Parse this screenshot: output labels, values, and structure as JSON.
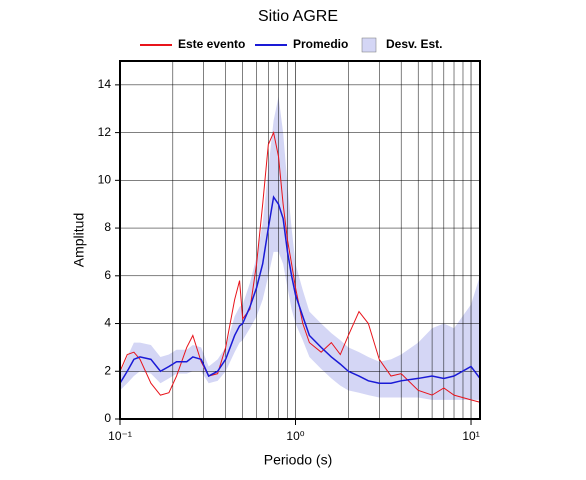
{
  "chart_data": {
    "type": "line",
    "title": "Sitio AGRE",
    "xlabel": "Periodo (s)",
    "ylabel": "Amplitud",
    "xscale": "log",
    "xlim": [
      0.1,
      11.25
    ],
    "ylim": [
      0,
      15
    ],
    "xticks": [
      {
        "value": 0.1,
        "label": "10⁻¹"
      },
      {
        "value": 1,
        "label": "10⁰"
      },
      {
        "value": 10,
        "label": "10¹"
      }
    ],
    "xminor": [
      0.2,
      0.3,
      0.4,
      0.5,
      0.6,
      0.7,
      0.8,
      0.9,
      2,
      3,
      4,
      5,
      6,
      7,
      8,
      9
    ],
    "yticks": [
      0,
      2,
      4,
      6,
      8,
      10,
      12,
      14
    ],
    "grid": true,
    "x": [
      0.1,
      0.11,
      0.12,
      0.13,
      0.15,
      0.17,
      0.19,
      0.21,
      0.24,
      0.26,
      0.29,
      0.32,
      0.36,
      0.4,
      0.45,
      0.48,
      0.5,
      0.55,
      0.6,
      0.65,
      0.7,
      0.75,
      0.8,
      0.85,
      0.9,
      0.95,
      1.0,
      1.1,
      1.2,
      1.4,
      1.6,
      1.8,
      2.0,
      2.3,
      2.6,
      3.0,
      3.5,
      4.0,
      5.0,
      6.0,
      7.0,
      8.0,
      10.0,
      11.25
    ],
    "band": {
      "name": "Desv. Est.",
      "color": "#d4d6f5",
      "lower": [
        1.2,
        1.5,
        1.8,
        2.0,
        1.9,
        1.5,
        1.7,
        1.9,
        1.9,
        2.0,
        2.0,
        1.5,
        1.6,
        2.0,
        2.8,
        3.2,
        3.3,
        3.8,
        4.3,
        5.0,
        6.0,
        7.0,
        7.0,
        6.5,
        5.5,
        4.6,
        4.0,
        3.3,
        2.6,
        2.1,
        1.7,
        1.4,
        1.2,
        1.1,
        1.0,
        0.9,
        0.9,
        0.9,
        0.9,
        0.8,
        0.8,
        0.8,
        0.8,
        0.8
      ],
      "upper": [
        1.9,
        2.6,
        3.2,
        3.2,
        3.1,
        2.6,
        2.7,
        2.9,
        2.9,
        3.1,
        3.0,
        2.2,
        2.5,
        3.0,
        4.3,
        4.7,
        4.8,
        5.7,
        6.8,
        8.2,
        10.5,
        12.5,
        13.5,
        12.0,
        9.8,
        8.0,
        6.5,
        5.4,
        4.5,
        4.0,
        3.6,
        3.3,
        3.0,
        2.8,
        2.6,
        2.4,
        2.5,
        2.7,
        3.2,
        3.8,
        4.0,
        3.8,
        4.8,
        6.0
      ]
    },
    "series": [
      {
        "name": "Este evento",
        "color": "#e8141b",
        "values": [
          2.0,
          2.7,
          2.8,
          2.5,
          1.5,
          1.0,
          1.1,
          1.8,
          3.0,
          3.5,
          2.4,
          1.8,
          1.9,
          3.0,
          5.0,
          5.8,
          4.2,
          4.6,
          6.5,
          9.0,
          11.5,
          12.0,
          11.0,
          9.0,
          7.5,
          6.5,
          5.5,
          4.0,
          3.2,
          2.8,
          3.2,
          2.7,
          3.5,
          4.5,
          4.0,
          2.5,
          1.8,
          1.9,
          1.2,
          1.0,
          1.3,
          1.0,
          0.8,
          0.7
        ]
      },
      {
        "name": "Promedio",
        "color": "#1a1ad6",
        "values": [
          1.5,
          2.0,
          2.5,
          2.6,
          2.5,
          2.0,
          2.2,
          2.4,
          2.4,
          2.6,
          2.5,
          1.8,
          2.0,
          2.5,
          3.5,
          3.9,
          4.0,
          4.7,
          5.5,
          6.5,
          8.0,
          9.3,
          9.0,
          8.4,
          7.0,
          6.0,
          5.2,
          4.3,
          3.5,
          3.0,
          2.6,
          2.3,
          2.0,
          1.8,
          1.6,
          1.5,
          1.5,
          1.6,
          1.7,
          1.8,
          1.7,
          1.8,
          2.2,
          1.7
        ]
      }
    ]
  }
}
